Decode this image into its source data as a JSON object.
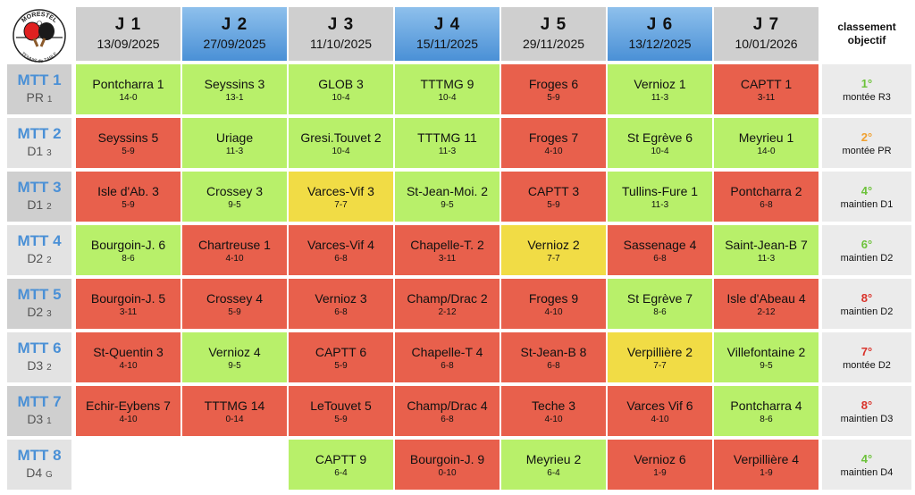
{
  "logo": {
    "top_text": "MORESTEL",
    "bottom_text": "TENNIS de TABLE"
  },
  "objective_header": {
    "line1": "classement",
    "line2": "objectif"
  },
  "days": [
    {
      "label": "J 1",
      "date": "13/09/2025",
      "style": "grey"
    },
    {
      "label": "J 2",
      "date": "27/09/2025",
      "style": "blue"
    },
    {
      "label": "J 3",
      "date": "11/10/2025",
      "style": "grey"
    },
    {
      "label": "J 4",
      "date": "15/11/2025",
      "style": "blue"
    },
    {
      "label": "J 5",
      "date": "29/11/2025",
      "style": "grey"
    },
    {
      "label": "J 6",
      "date": "13/12/2025",
      "style": "blue"
    },
    {
      "label": "J 7",
      "date": "10/01/2026",
      "style": "grey"
    }
  ],
  "colors": {
    "win": "#b8f06a",
    "loss": "#e8604c",
    "draw": "#f1dc45",
    "rank_green": "#6cc23a",
    "rank_orange": "#f0a030",
    "rank_red": "#d9322a"
  },
  "teams": [
    {
      "name": "MTT 1",
      "division": "PR",
      "group": "1",
      "rank": "1°",
      "rank_color": "#6cc23a",
      "goal": "montée R3",
      "matches": [
        {
          "opponent": "Pontcharra 1",
          "score": "14-0",
          "result": "win"
        },
        {
          "opponent": "Seyssins 3",
          "score": "13-1",
          "result": "win"
        },
        {
          "opponent": "GLOB 3",
          "score": "10-4",
          "result": "win"
        },
        {
          "opponent": "TTTMG 9",
          "score": "10-4",
          "result": "win"
        },
        {
          "opponent": "Froges 6",
          "score": "5-9",
          "result": "loss"
        },
        {
          "opponent": "Vernioz 1",
          "score": "11-3",
          "result": "win"
        },
        {
          "opponent": "CAPTT 1",
          "score": "3-11",
          "result": "loss"
        }
      ]
    },
    {
      "name": "MTT 2",
      "division": "D1",
      "group": "3",
      "rank": "2°",
      "rank_color": "#f0a030",
      "goal": "montée PR",
      "matches": [
        {
          "opponent": "Seyssins 5",
          "score": "5-9",
          "result": "loss"
        },
        {
          "opponent": "Uriage",
          "score": "11-3",
          "result": "win"
        },
        {
          "opponent": "Gresi.Touvet 2",
          "score": "10-4",
          "result": "win"
        },
        {
          "opponent": "TTTMG 11",
          "score": "11-3",
          "result": "win"
        },
        {
          "opponent": "Froges 7",
          "score": "4-10",
          "result": "loss"
        },
        {
          "opponent": "St Egrève 6",
          "score": "10-4",
          "result": "win"
        },
        {
          "opponent": "Meyrieu 1",
          "score": "14-0",
          "result": "win"
        }
      ]
    },
    {
      "name": "MTT 3",
      "division": "D1",
      "group": "2",
      "rank": "4°",
      "rank_color": "#6cc23a",
      "goal": "maintien D1",
      "matches": [
        {
          "opponent": "Isle d'Ab. 3",
          "score": "5-9",
          "result": "loss"
        },
        {
          "opponent": "Crossey 3",
          "score": "9-5",
          "result": "win"
        },
        {
          "opponent": "Varces-Vif 3",
          "score": "7-7",
          "result": "draw"
        },
        {
          "opponent": "St-Jean-Moi. 2",
          "score": "9-5",
          "result": "win"
        },
        {
          "opponent": "CAPTT 3",
          "score": "5-9",
          "result": "loss"
        },
        {
          "opponent": "Tullins-Fure 1",
          "score": "11-3",
          "result": "win"
        },
        {
          "opponent": "Pontcharra 2",
          "score": "6-8",
          "result": "loss"
        }
      ]
    },
    {
      "name": "MTT 4",
      "division": "D2",
      "group": "2",
      "rank": "6°",
      "rank_color": "#6cc23a",
      "goal": "maintien D2",
      "matches": [
        {
          "opponent": "Bourgoin-J. 6",
          "score": "8-6",
          "result": "win"
        },
        {
          "opponent": "Chartreuse 1",
          "score": "4-10",
          "result": "loss"
        },
        {
          "opponent": "Varces-Vif 4",
          "score": "6-8",
          "result": "loss"
        },
        {
          "opponent": "Chapelle-T. 2",
          "score": "3-11",
          "result": "loss"
        },
        {
          "opponent": "Vernioz 2",
          "score": "7-7",
          "result": "draw"
        },
        {
          "opponent": "Sassenage 4",
          "score": "6-8",
          "result": "loss"
        },
        {
          "opponent": "Saint-Jean-B 7",
          "score": "11-3",
          "result": "win"
        }
      ]
    },
    {
      "name": "MTT 5",
      "division": "D2",
      "group": "3",
      "rank": "8°",
      "rank_color": "#d9322a",
      "goal": "maintien D2",
      "matches": [
        {
          "opponent": "Bourgoin-J. 5",
          "score": "3-11",
          "result": "loss"
        },
        {
          "opponent": "Crossey 4",
          "score": "5-9",
          "result": "loss"
        },
        {
          "opponent": "Vernioz 3",
          "score": "6-8",
          "result": "loss"
        },
        {
          "opponent": "Champ/Drac 2",
          "score": "2-12",
          "result": "loss"
        },
        {
          "opponent": "Froges 9",
          "score": "4-10",
          "result": "loss"
        },
        {
          "opponent": "St Egrève 7",
          "score": "8-6",
          "result": "win"
        },
        {
          "opponent": "Isle d'Abeau 4",
          "score": "2-12",
          "result": "loss"
        }
      ]
    },
    {
      "name": "MTT 6",
      "division": "D3",
      "group": "2",
      "rank": "7°",
      "rank_color": "#d9322a",
      "goal": "montée D2",
      "matches": [
        {
          "opponent": "St-Quentin 3",
          "score": "4-10",
          "result": "loss"
        },
        {
          "opponent": "Vernioz 4",
          "score": "9-5",
          "result": "win"
        },
        {
          "opponent": "CAPTT 6",
          "score": "5-9",
          "result": "loss"
        },
        {
          "opponent": "Chapelle-T 4",
          "score": "6-8",
          "result": "loss"
        },
        {
          "opponent": "St-Jean-B 8",
          "score": "6-8",
          "result": "loss"
        },
        {
          "opponent": "Verpillière 2",
          "score": "7-7",
          "result": "draw"
        },
        {
          "opponent": "Villefontaine 2",
          "score": "9-5",
          "result": "win"
        }
      ]
    },
    {
      "name": "MTT 7",
      "division": "D3",
      "group": "1",
      "rank": "8°",
      "rank_color": "#d9322a",
      "goal": "maintien D3",
      "matches": [
        {
          "opponent": "Echir-Eybens 7",
          "score": "4-10",
          "result": "loss"
        },
        {
          "opponent": "TTTMG 14",
          "score": "0-14",
          "result": "loss"
        },
        {
          "opponent": "LeTouvet 5",
          "score": "5-9",
          "result": "loss"
        },
        {
          "opponent": "Champ/Drac 4",
          "score": "6-8",
          "result": "loss"
        },
        {
          "opponent": "Teche 3",
          "score": "4-10",
          "result": "loss"
        },
        {
          "opponent": "Varces Vif 6",
          "score": "4-10",
          "result": "loss"
        },
        {
          "opponent": "Pontcharra 4",
          "score": "8-6",
          "result": "win"
        }
      ]
    },
    {
      "name": "MTT 8",
      "division": "D4",
      "group": "G",
      "rank": "4°",
      "rank_color": "#6cc23a",
      "goal": "maintien D4",
      "matches": [
        null,
        null,
        {
          "opponent": "CAPTT 9",
          "score": "6-4",
          "result": "win"
        },
        {
          "opponent": "Bourgoin-J. 9",
          "score": "0-10",
          "result": "loss"
        },
        {
          "opponent": "Meyrieu 2",
          "score": "6-4",
          "result": "win"
        },
        {
          "opponent": "Vernioz 6",
          "score": "1-9",
          "result": "loss"
        },
        {
          "opponent": "Verpillière 4",
          "score": "1-9",
          "result": "loss"
        }
      ]
    }
  ]
}
